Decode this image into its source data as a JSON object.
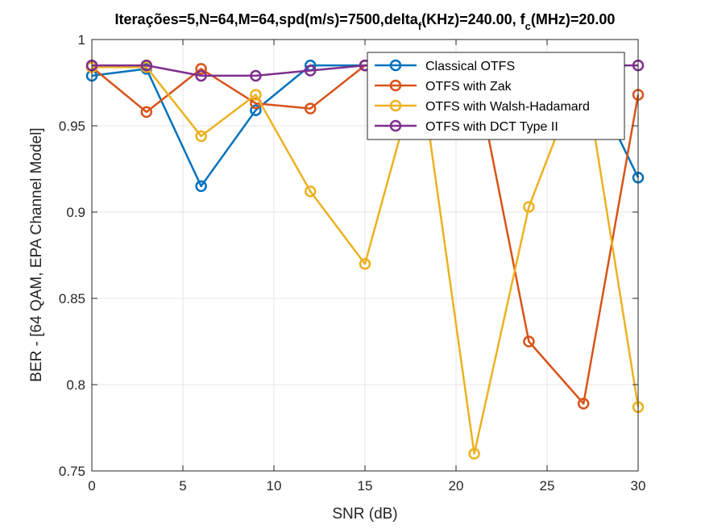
{
  "chart_data": {
    "type": "line",
    "title_parts": {
      "a": "Iterações=5,N=64,M=64,spd(m/s)=7500,delta",
      "a_sub": "f",
      "b": "(KHz)=240.00, f",
      "b_sub": "c",
      "c": "(MHz)=20.00"
    },
    "xlabel": "SNR (dB)",
    "ylabel": "BER - [64 QAM, EPA Channel Model]",
    "xlim": [
      0,
      30
    ],
    "ylim": [
      0.75,
      1
    ],
    "xticks": [
      0,
      5,
      10,
      15,
      20,
      25,
      30
    ],
    "xtick_labels": [
      "0",
      "5",
      "10",
      "15",
      "20",
      "25",
      "30"
    ],
    "yticks": [
      0.75,
      0.8,
      0.85,
      0.9,
      0.95,
      1
    ],
    "ytick_labels": [
      "0.75",
      "0.8",
      "0.85",
      "0.9",
      "0.95",
      "1"
    ],
    "grid": true,
    "legend_position": "top-right",
    "x": [
      0,
      3,
      6,
      9,
      12,
      15,
      18,
      21,
      24,
      27,
      30
    ],
    "series": [
      {
        "name": "Classical OTFS",
        "color": "#0072BD",
        "values": [
          0.979,
          0.983,
          0.915,
          0.959,
          0.985,
          0.985,
          0.985,
          0.985,
          0.985,
          0.985,
          0.92
        ]
      },
      {
        "name": "OTFS with Zak",
        "color": "#D95319",
        "values": [
          0.984,
          0.958,
          0.983,
          0.963,
          0.96,
          0.985,
          0.985,
          0.985,
          0.825,
          0.789,
          0.968
        ]
      },
      {
        "name": "OTFS with Walsh-Hadamard",
        "color": "#EDB120",
        "values": [
          0.984,
          0.984,
          0.944,
          0.968,
          0.912,
          0.87,
          0.985,
          0.76,
          0.903,
          0.985,
          0.787
        ]
      },
      {
        "name": "OTFS with DCT Type II",
        "color": "#7E2F8E",
        "values": [
          0.985,
          0.985,
          0.979,
          0.979,
          0.982,
          0.985,
          0.985,
          0.985,
          0.985,
          0.985,
          0.985
        ]
      }
    ]
  }
}
